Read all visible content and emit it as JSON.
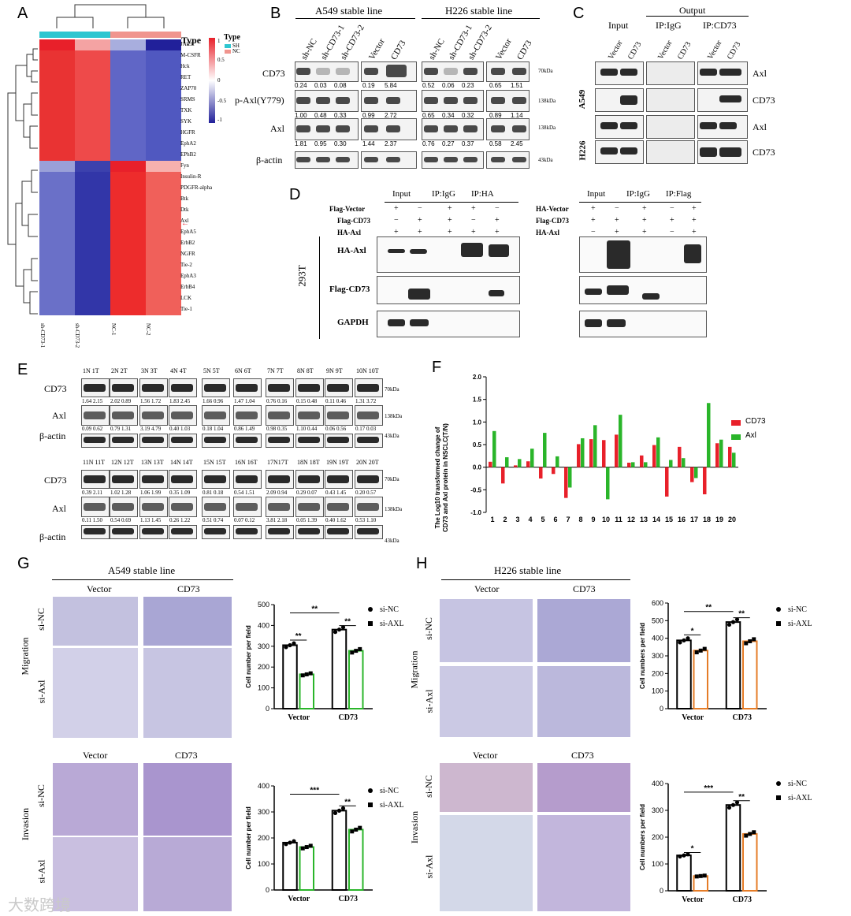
{
  "panel_letters": [
    "A",
    "B",
    "C",
    "D",
    "E",
    "F",
    "G",
    "H"
  ],
  "panelA": {
    "legend_title": "Type",
    "legend_items": [
      "SH",
      "NC"
    ],
    "scale_ticks": [
      "1",
      "0.5",
      "0",
      "-0.5",
      "-1"
    ],
    "genes": [
      "JAk3",
      "M-CSFR",
      "Hck",
      "RET",
      "ZAP70",
      "SRMS",
      "TXK",
      "SYK",
      "HGFR",
      "EphA2",
      "EPhB2",
      "Fyn",
      "Insulin-R",
      "PDGFR-alpha",
      "Btk",
      "Dtk",
      "Axl",
      "EphA5",
      "ErbB2",
      "NGFR",
      "Tie-2",
      "EphA3",
      "ErbB4",
      "LCK",
      "Tie-1"
    ],
    "samples": [
      "sh-CD73-1",
      "sh-CD73-2",
      "NC-1",
      "NC-2"
    ]
  },
  "panelB": {
    "title_left": "A549 stable line",
    "title_right": "H226 stable line",
    "lanes_left": [
      "sh-NC",
      "sh-CD73-1",
      "sh-CD73-2",
      "Vector",
      "CD73"
    ],
    "lanes_right": [
      "sh-NC",
      "sh-CD73-1",
      "sh-CD73-2",
      "Vector",
      "CD73"
    ],
    "rows": [
      "CD73",
      "p-Axl(Y779)",
      "Axl",
      "β-actin"
    ],
    "kda": [
      "70kDa",
      "138kDa",
      "138kDa",
      "43kDa"
    ],
    "quant": [
      [
        "0.24",
        "0.03",
        "0.08",
        "0.19",
        "5.84",
        "0.52",
        "0.06",
        "0.23",
        "0.65",
        "1.51"
      ],
      [
        "1.00",
        "0.48",
        "0.33",
        "0.99",
        "2.72",
        "0.65",
        "0.34",
        "0.32",
        "0.89",
        "1.14"
      ],
      [
        "1.81",
        "0.95",
        "0.30",
        "1.44",
        "2.37",
        "0.76",
        "0.27",
        "0.37",
        "0.58",
        "2.45"
      ]
    ]
  },
  "panelC": {
    "heads": [
      "Input",
      "Output",
      "IP:IgG",
      "IP:CD73"
    ],
    "lanes": [
      "Vector",
      "CD73",
      "Vector",
      "CD73",
      "Vector",
      "CD73"
    ],
    "cells": [
      "A549",
      "H226"
    ],
    "rows": [
      "Axl",
      "CD73",
      "Axl",
      "CD73"
    ]
  },
  "panelD": {
    "left_heads": [
      "Input",
      "IP:IgG",
      "IP:HA"
    ],
    "right_heads": [
      "Input",
      "IP:IgG",
      "IP:Flag"
    ],
    "left_rows": [
      "Flag-Vector",
      "Flag-CD73",
      "HA-Axl"
    ],
    "right_rows": [
      "HA-Vector",
      "Flag-CD73",
      "HA-Axl"
    ],
    "left_signs": [
      [
        "+",
        "−",
        "+",
        "+",
        "−"
      ],
      [
        "−",
        "+",
        "+",
        "−",
        "+"
      ],
      [
        "+",
        "+",
        "+",
        "+",
        "+"
      ]
    ],
    "right_signs": [
      [
        "+",
        "−",
        "+",
        "−",
        "+"
      ],
      [
        "+",
        "+",
        "+",
        "+",
        "+"
      ],
      [
        "−",
        "+",
        "+",
        "−",
        "+"
      ]
    ],
    "blot_rows": [
      "HA-Axl",
      "Flag-CD73",
      "GAPDH"
    ],
    "cell": "293T"
  },
  "panelE": {
    "rows": [
      "CD73",
      "Axl",
      "β-actin"
    ],
    "kda": [
      "70kDa",
      "138kDa",
      "43kDa"
    ],
    "pairs_top": [
      "1N 1T",
      "2N 2T",
      "3N 3T",
      "4N 4T",
      "5N 5T",
      "6N 6T",
      "7N 7T",
      "8N 8T",
      "9N 9T",
      "10N 10T"
    ],
    "pairs_bottom": [
      "11N 11T",
      "12N 12T",
      "13N 13T",
      "14N 14T",
      "15N 15T",
      "16N 16T",
      "17N17T",
      "18N 18T",
      "19N 19T",
      "20N 20T"
    ],
    "cd73_top": [
      "1.64 2.15",
      "2.02 0.89",
      "1.56 1.72",
      "1.83 2.45",
      "1.66 0.96",
      "1.47 1.04",
      "0.76 0.16",
      "0.15 0.48",
      "0.11 0.46",
      "1.31 3.72"
    ],
    "axl_top": [
      "0.09 0.62",
      "0.79 1.31",
      "3.19 4.79",
      "0.40 1.03",
      "0.18 1.04",
      "0.86 1.49",
      "0.98 0.35",
      "1.10 0.44",
      "0.06 0.56",
      "0.17 0.03"
    ],
    "cd73_bottom": [
      "0.39 2.11",
      "1.02 1.28",
      "1.06 1.99",
      "0.35 1.09",
      "0.81 0.18",
      "0.54 1.51",
      "2.09 0.94",
      "0.29 0.07",
      "0.43 1.45",
      "0.20 0.57"
    ],
    "axl_bottom": [
      "0.11 1.50",
      "0.54 0.69",
      "1.13 1.45",
      "0.26 1.22",
      "0.51 0.74",
      "0.07 0.12",
      "3.81 2.18",
      "0.05 1.39",
      "0.40 1.62",
      "0.53 1.10"
    ]
  },
  "chart_data": [
    {
      "type": "bar",
      "title": "",
      "ylabel": "The Log10 transformed change of CD73 and Axl protein in NSCLC(T/N)",
      "xlabel": "",
      "categories": [
        "1",
        "2",
        "3",
        "4",
        "5",
        "6",
        "7",
        "8",
        "9",
        "10",
        "11",
        "12",
        "13",
        "14",
        "15",
        "16",
        "17",
        "18",
        "19",
        "20"
      ],
      "ylim": [
        -1.0,
        2.0
      ],
      "yticks": [
        "-1.0",
        "-0.5",
        "0.0",
        "0.5",
        "1.0",
        "1.5",
        "2.0"
      ],
      "series": [
        {
          "name": "CD73",
          "color": "#e8202a",
          "values": [
            0.12,
            -0.36,
            0.04,
            0.13,
            -0.25,
            -0.15,
            -0.68,
            0.51,
            0.62,
            0.6,
            0.72,
            0.1,
            0.26,
            0.49,
            -0.65,
            0.45,
            -0.33,
            -0.6,
            0.53,
            0.45
          ]
        },
        {
          "name": "Axl",
          "color": "#2ab52a",
          "values": [
            0.8,
            0.22,
            0.18,
            0.41,
            0.76,
            0.24,
            -0.45,
            0.64,
            0.93,
            -0.71,
            1.16,
            0.11,
            0.11,
            0.66,
            0.16,
            0.2,
            -0.24,
            1.42,
            0.61,
            0.32
          ]
        }
      ]
    },
    {
      "type": "bar",
      "panel": "G-migration",
      "ylabel": "Cell number per field",
      "categories": [
        "Vector",
        "CD73"
      ],
      "ylim": [
        0,
        500
      ],
      "yticks": [
        "0",
        "100",
        "200",
        "300",
        "400",
        "500"
      ],
      "series": [
        {
          "name": "si-NC",
          "values": [
            305,
            380
          ]
        },
        {
          "name": "si-AXL",
          "values": [
            165,
            278
          ]
        }
      ],
      "sig": [
        "**",
        "**",
        "**"
      ]
    },
    {
      "type": "bar",
      "panel": "G-invasion",
      "ylabel": "Cell number per field",
      "categories": [
        "Vector",
        "CD73"
      ],
      "ylim": [
        0,
        400
      ],
      "yticks": [
        "0",
        "100",
        "200",
        "300",
        "400"
      ],
      "series": [
        {
          "name": "si-NC",
          "values": [
            182,
            305
          ]
        },
        {
          "name": "si-AXL",
          "values": [
            165,
            232
          ]
        }
      ],
      "sig": [
        "***",
        "**"
      ]
    },
    {
      "type": "bar",
      "panel": "H-migration",
      "ylabel": "Cell numbers per field",
      "categories": [
        "Vector",
        "CD73"
      ],
      "ylim": [
        0,
        600
      ],
      "yticks": [
        "0",
        "100",
        "200",
        "300",
        "400",
        "500",
        "600"
      ],
      "series": [
        {
          "name": "si-NC",
          "values": [
            388,
            492
          ]
        },
        {
          "name": "si-AXL",
          "values": [
            330,
            383
          ]
        }
      ],
      "sig": [
        "*",
        "**",
        "**"
      ]
    },
    {
      "type": "bar",
      "panel": "H-invasion",
      "ylabel": "Cell numbers per field",
      "categories": [
        "Vector",
        "CD73"
      ],
      "ylim": [
        0,
        400
      ],
      "yticks": [
        "0",
        "100",
        "200",
        "300",
        "400"
      ],
      "series": [
        {
          "name": "si-NC",
          "values": [
            132,
            320
          ]
        },
        {
          "name": "si-AXL",
          "values": [
            55,
            212
          ]
        }
      ],
      "sig": [
        "*",
        "***",
        "**"
      ]
    }
  ],
  "panelG": {
    "title": "A549 stable line",
    "cols": [
      "Vector",
      "CD73"
    ],
    "rows": [
      "si-NC",
      "si-Axl"
    ],
    "sections": [
      "Migration",
      "Invasion"
    ],
    "legend": [
      "si-NC",
      "si-AXL"
    ]
  },
  "panelH": {
    "title": "H226 stable line",
    "cols": [
      "Vector",
      "CD73"
    ],
    "rows": [
      "si-NC",
      "si-Axl"
    ],
    "sections": [
      "Migration",
      "Invasion"
    ],
    "legend": [
      "si-NC",
      "si-AXL"
    ]
  },
  "watermark": "大数跨境"
}
